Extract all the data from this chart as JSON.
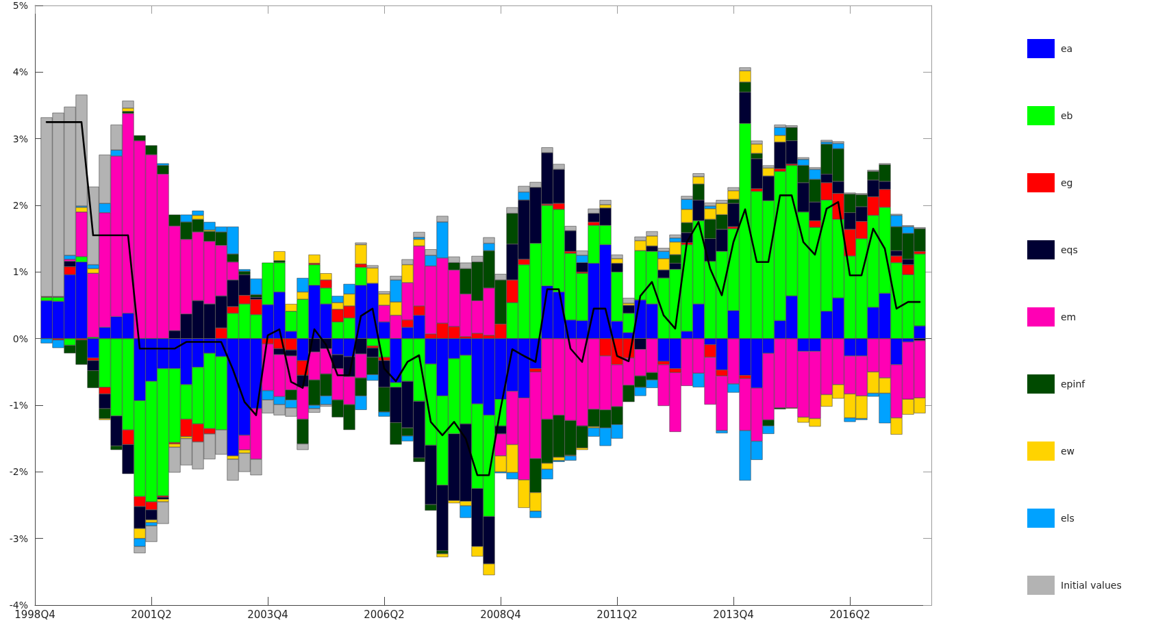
{
  "chart_data": {
    "type": "bar",
    "stacked": true,
    "legend": "right",
    "marker": "none",
    "categories": [
      "1998Q4",
      null,
      null,
      null,
      null,
      null,
      null,
      null,
      null,
      null,
      "2001Q2",
      null,
      null,
      null,
      null,
      null,
      null,
      null,
      null,
      null,
      "2003Q4",
      null,
      null,
      null,
      null,
      null,
      null,
      null,
      null,
      null,
      "2006Q2",
      null,
      null,
      null,
      null,
      null,
      null,
      null,
      null,
      null,
      "2008Q4",
      null,
      null,
      null,
      null,
      null,
      null,
      null,
      null,
      null,
      "2011Q2",
      null,
      null,
      null,
      null,
      null,
      null,
      null,
      null,
      null,
      "2013Q4",
      null,
      null,
      null,
      null,
      null,
      null,
      null,
      null,
      null,
      "2016Q2",
      null,
      null,
      null,
      null,
      null,
      null,
      null
    ],
    "ylim": [
      -4,
      5
    ],
    "yticks": [
      {
        "value": -4,
        "label": "-4%"
      },
      {
        "value": -3,
        "label": "-3%"
      },
      {
        "value": -2,
        "label": "-2%"
      },
      {
        "value": -1,
        "label": "-1%"
      },
      {
        "value": 0,
        "label": "0%"
      },
      {
        "value": 1,
        "label": "1%"
      },
      {
        "value": 2,
        "label": "2%"
      },
      {
        "value": 3,
        "label": "3%"
      },
      {
        "value": 4,
        "label": "4%"
      },
      {
        "value": 5,
        "label": "5%"
      }
    ],
    "ref_lines": [
      {
        "axis": "y",
        "value": 0,
        "color": "#555555"
      }
    ],
    "series": [
      {
        "name": "ea",
        "color": "#0000ff",
        "values": [
          null,
          0.57,
          0.56,
          0.96,
          1.15,
          -0.29,
          0.17,
          0.33,
          0.38,
          -0.93,
          -0.64,
          -0.45,
          -0.45,
          -0.69,
          -0.43,
          -0.22,
          -0.27,
          -1.76,
          -1.45,
          -1.05,
          0.51,
          0.7,
          0.11,
          -0.33,
          0.8,
          0.52,
          -0.24,
          -0.27,
          0.8,
          0.83,
          0.25,
          -0.66,
          0.17,
          0.35,
          -0.38,
          -0.86,
          -0.3,
          -0.25,
          -0.98,
          -1.15,
          -0.91,
          -0.79,
          -0.89,
          -0.45,
          0.79,
          0.7,
          0.28,
          0.27,
          1.13,
          1.41,
          0.26,
          0.09,
          0.58,
          0.52,
          -0.34,
          -0.45,
          0.11,
          0.52,
          -0.09,
          -0.47,
          0.42,
          -0.55,
          -0.74,
          -0.22,
          0.27,
          0.64,
          -0.19,
          -0.19,
          0.41,
          0.61,
          -0.26,
          -0.26,
          0.47,
          0.68,
          -0.39,
          -0.05,
          0.19,
          null
        ]
      },
      {
        "name": "eb",
        "color": "#00ff00",
        "values": [
          null,
          0.05,
          0.06,
          -0.1,
          0.08,
          0.02,
          -0.73,
          -1.16,
          -1.37,
          -1.44,
          -1.81,
          -1.91,
          -1.11,
          -0.52,
          -0.85,
          -1.13,
          -1.1,
          0.38,
          0.52,
          0.36,
          0.63,
          0.44,
          0.3,
          0.59,
          0.31,
          0.24,
          0.25,
          0.31,
          0.27,
          -0.11,
          -0.28,
          -0.07,
          -0.64,
          -0.94,
          -1.22,
          -1.34,
          -1.13,
          -1.03,
          -1.27,
          -1.52,
          -0.4,
          0.54,
          1.11,
          1.43,
          1.21,
          1.24,
          1.0,
          0.71,
          0.57,
          0.29,
          0.74,
          0.29,
          0.74,
          0.79,
          0.91,
          1.04,
          1.3,
          1.25,
          1.16,
          1.31,
          1.23,
          3.23,
          2.21,
          2.07,
          2.24,
          1.96,
          1.9,
          1.67,
          1.67,
          1.18,
          1.24,
          1.5,
          1.38,
          1.29,
          1.14,
          0.96,
          1.08,
          null
        ]
      },
      {
        "name": "eg",
        "color": "#ff0000",
        "values": [
          null,
          0.01,
          -0.02,
          0.12,
          -0.02,
          -0.04,
          -0.1,
          null,
          -0.22,
          -0.15,
          -0.12,
          -0.02,
          -0.02,
          -0.26,
          -0.27,
          -0.08,
          0.16,
          0.1,
          0.13,
          0.23,
          -0.08,
          -0.15,
          -0.17,
          -0.22,
          0.02,
          0.12,
          0.19,
          0.18,
          0.05,
          -0.03,
          -0.05,
          null,
          0.11,
          0.14,
          0.07,
          0.23,
          0.18,
          0.03,
          0.08,
          0.05,
          0.22,
          0.34,
          0.08,
          -0.05,
          0.02,
          0.09,
          0.03,
          0.02,
          0.05,
          -0.26,
          -0.39,
          -0.29,
          null,
          null,
          -0.05,
          -0.06,
          0.03,
          null,
          -0.19,
          -0.09,
          0.03,
          -0.05,
          0.04,
          null,
          0.04,
          0.02,
          null,
          0.1,
          0.26,
          0.39,
          0.4,
          0.26,
          0.28,
          0.27,
          0.1,
          0.15,
          0.04,
          null
        ]
      },
      {
        "name": "eqs",
        "color": "#000033",
        "values": [
          null,
          null,
          null,
          0.08,
          null,
          -0.15,
          -0.22,
          -0.45,
          -0.44,
          -0.33,
          -0.15,
          -0.03,
          0.12,
          0.37,
          0.57,
          0.52,
          0.48,
          0.4,
          0.31,
          0.03,
          null,
          -0.09,
          -0.09,
          -0.17,
          -0.2,
          -0.15,
          -0.21,
          -0.3,
          -0.23,
          -0.14,
          -0.4,
          -0.53,
          -0.7,
          -0.85,
          -0.89,
          -0.98,
          -1.0,
          -1.16,
          -0.87,
          -0.71,
          -0.12,
          0.54,
          0.89,
          0.84,
          0.77,
          0.51,
          0.31,
          0.14,
          0.13,
          0.26,
          0.13,
          0.12,
          -0.16,
          0.08,
          0.12,
          0.09,
          0.15,
          0.31,
          0.34,
          0.33,
          0.35,
          0.47,
          0.45,
          0.37,
          0.4,
          0.35,
          0.44,
          0.28,
          0.13,
          0.18,
          0.25,
          0.22,
          0.25,
          0.12,
          0.08,
          0.08,
          -0.03,
          null
        ]
      },
      {
        "name": "em",
        "color": "#ff00b4",
        "values": [
          null,
          null,
          0.01,
          0.03,
          0.67,
          0.96,
          1.72,
          2.41,
          3.0,
          2.97,
          2.76,
          2.47,
          1.57,
          1.12,
          1.03,
          0.94,
          0.76,
          0.27,
          -0.22,
          -0.76,
          -0.7,
          -0.63,
          -0.51,
          -0.49,
          -0.42,
          -0.38,
          -0.47,
          -0.42,
          -0.36,
          null,
          0.25,
          0.35,
          0.56,
          0.9,
          1.02,
          0.98,
          0.85,
          0.64,
          0.49,
          0.71,
          -0.33,
          -0.8,
          -1.23,
          -1.3,
          -1.21,
          -1.15,
          -1.23,
          -1.31,
          -1.06,
          -0.81,
          -0.63,
          -0.41,
          -0.4,
          -0.51,
          -0.62,
          -0.89,
          -0.71,
          -0.52,
          -0.71,
          -0.82,
          -0.68,
          -0.78,
          -0.8,
          -1.0,
          -1.04,
          -1.04,
          -0.99,
          -1.01,
          -0.84,
          -0.69,
          -0.57,
          -0.6,
          -0.5,
          -0.59,
          -0.8,
          -0.86,
          -0.86,
          null
        ]
      },
      {
        "name": "epinf",
        "color": "#004a00",
        "values": [
          null,
          null,
          null,
          -0.12,
          -0.37,
          -0.26,
          -0.15,
          -0.06,
          0.03,
          0.08,
          0.14,
          0.13,
          0.17,
          0.26,
          0.19,
          0.15,
          0.2,
          0.12,
          0.05,
          0.04,
          null,
          0.03,
          -0.15,
          -0.37,
          -0.38,
          -0.33,
          -0.26,
          -0.38,
          -0.27,
          -0.26,
          -0.37,
          -0.33,
          -0.12,
          -0.06,
          -0.09,
          -0.05,
          0.11,
          0.38,
          0.58,
          0.56,
          0.66,
          0.46,
          null,
          -0.51,
          -0.66,
          -0.63,
          -0.52,
          -0.33,
          -0.26,
          -0.27,
          -0.27,
          -0.25,
          -0.17,
          -0.11,
          null,
          0.13,
          0.15,
          0.24,
          0.29,
          0.22,
          0.06,
          0.15,
          0.08,
          -0.09,
          -0.02,
          0.2,
          0.26,
          0.34,
          0.45,
          0.49,
          0.28,
          0.18,
          0.13,
          0.25,
          0.36,
          0.39,
          0.34,
          null
        ]
      },
      {
        "name": "ew",
        "color": "#ffd300",
        "values": [
          null,
          null,
          null,
          null,
          0.07,
          0.07,
          -0.02,
          null,
          0.05,
          -0.15,
          -0.04,
          -0.04,
          -0.05,
          -0.03,
          0.06,
          0.02,
          null,
          -0.05,
          -0.05,
          null,
          null,
          0.14,
          0.11,
          0.11,
          0.13,
          0.1,
          0.1,
          0.18,
          0.29,
          0.23,
          0.17,
          0.2,
          0.27,
          0.1,
          null,
          -0.05,
          -0.04,
          -0.07,
          -0.15,
          -0.17,
          -0.24,
          -0.42,
          -0.42,
          -0.28,
          -0.09,
          -0.05,
          -0.01,
          -0.03,
          -0.02,
          0.05,
          0.07,
          0.03,
          0.15,
          0.15,
          0.17,
          0.19,
          0.2,
          0.11,
          0.16,
          0.17,
          0.13,
          0.17,
          0.14,
          0.12,
          0.1,
          -0.01,
          -0.08,
          -0.12,
          -0.18,
          -0.21,
          -0.36,
          -0.34,
          -0.32,
          -0.23,
          -0.25,
          -0.23,
          -0.23,
          null
        ]
      },
      {
        "name": "els",
        "color": "#00a2ff",
        "values": [
          null,
          -0.07,
          -0.12,
          0.06,
          0.02,
          0.06,
          0.14,
          0.09,
          null,
          -0.12,
          -0.05,
          0.03,
          null,
          0.11,
          0.07,
          0.12,
          0.08,
          0.41,
          0.03,
          0.24,
          -0.14,
          -0.12,
          -0.12,
          0.21,
          -0.05,
          -0.13,
          0.1,
          0.15,
          -0.21,
          -0.09,
          -0.07,
          0.33,
          -0.08,
          0.03,
          0.16,
          0.54,
          null,
          -0.18,
          null,
          0.11,
          -0.02,
          -0.1,
          0.12,
          -0.1,
          -0.15,
          -0.02,
          -0.07,
          0.11,
          -0.13,
          -0.27,
          -0.21,
          null,
          -0.13,
          -0.12,
          0.11,
          0.06,
          0.15,
          -0.21,
          0.04,
          -0.04,
          -0.13,
          -0.75,
          -0.28,
          -0.12,
          0.12,
          null,
          0.09,
          0.15,
          0.03,
          0.08,
          -0.06,
          -0.02,
          -0.05,
          -0.45,
          0.17,
          0.1,
          null,
          null
        ]
      },
      {
        "name": "Initial values",
        "color": "#b3b3b3",
        "values": [
          null,
          2.69,
          2.76,
          2.23,
          1.67,
          1.17,
          0.73,
          0.38,
          0.11,
          -0.1,
          -0.24,
          -0.33,
          -0.38,
          -0.4,
          -0.41,
          -0.38,
          -0.37,
          -0.32,
          -0.28,
          -0.24,
          -0.2,
          -0.16,
          -0.13,
          -0.09,
          -0.06,
          -0.03,
          null,
          null,
          0.03,
          0.04,
          0.04,
          0.06,
          0.08,
          0.08,
          0.09,
          0.09,
          0.09,
          0.09,
          0.09,
          0.09,
          0.09,
          0.09,
          0.09,
          0.08,
          0.08,
          0.08,
          0.07,
          0.07,
          0.07,
          0.07,
          0.06,
          0.08,
          0.06,
          0.07,
          0.05,
          0.05,
          0.05,
          0.05,
          0.05,
          0.05,
          0.05,
          0.05,
          0.05,
          0.04,
          0.04,
          0.03,
          0.03,
          0.03,
          0.03,
          0.03,
          0.02,
          0.02,
          0.02,
          0.02,
          0.02,
          0.02,
          0.02,
          null
        ]
      },
      {
        "type": "line",
        "color": "#000000",
        "values": [
          null,
          3.25,
          3.25,
          3.25,
          3.25,
          1.55,
          1.55,
          1.55,
          1.55,
          -0.15,
          -0.15,
          -0.15,
          -0.15,
          -0.05,
          -0.05,
          -0.05,
          -0.05,
          -0.46,
          -0.95,
          -1.15,
          0.05,
          0.14,
          -0.65,
          -0.74,
          0.14,
          -0.09,
          -0.55,
          -0.55,
          0.34,
          0.45,
          -0.45,
          -0.64,
          -0.35,
          -0.25,
          -1.25,
          -1.45,
          -1.25,
          -1.5,
          -2.05,
          -2.05,
          -1.05,
          -0.16,
          -0.26,
          -0.35,
          0.74,
          0.74,
          -0.15,
          -0.35,
          0.45,
          0.45,
          -0.26,
          -0.34,
          0.64,
          0.85,
          0.35,
          0.15,
          1.45,
          1.75,
          1.05,
          0.65,
          1.45,
          1.94,
          1.15,
          1.15,
          2.15,
          2.15,
          1.45,
          1.26,
          1.95,
          2.05,
          0.95,
          0.95,
          1.65,
          1.35,
          0.45,
          0.55,
          0.55,
          null
        ]
      }
    ]
  }
}
